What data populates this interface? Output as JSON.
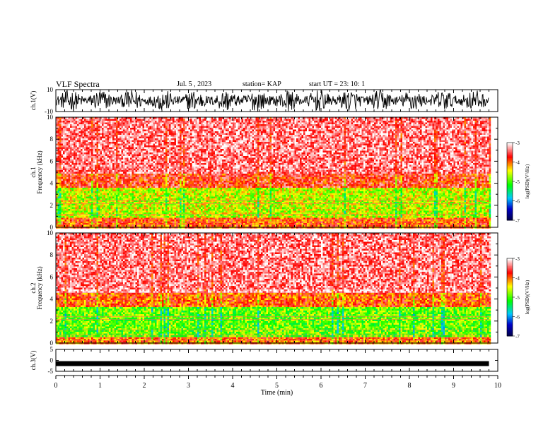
{
  "header": {
    "title": "VLF Spectra",
    "date": "Jul. 5 , 2023",
    "station": "station= KAP",
    "start": "start UT = 23: 10: 1"
  },
  "chart_data": [
    {
      "type": "line",
      "name": "ch1-waveform",
      "ylabel": "ch.1(V)",
      "ylim": [
        -10,
        10
      ],
      "yticks": [
        "10",
        "-10"
      ],
      "xlim": [
        0,
        10
      ],
      "description_visible": "dense black waveform spanning most of the range"
    },
    {
      "type": "heatmap",
      "name": "ch1-spectrogram",
      "ylabel_top": "ch.1",
      "ylabel": "Frequency (kHz)",
      "ylim": [
        0,
        10
      ],
      "yticks": [
        "0",
        "2",
        "4",
        "6",
        "8",
        "10"
      ],
      "xlim": [
        0,
        10
      ],
      "data_end_min": 9.8,
      "bands": [
        {
          "from": 0,
          "to": 1.0,
          "level": -3.9
        },
        {
          "from": 1.0,
          "to": 3.6,
          "level": -4.6
        },
        {
          "from": 3.6,
          "to": 5.0,
          "level": -3.7
        },
        {
          "from": 5.0,
          "to": 10,
          "level": -3.2
        }
      ],
      "colorbar": {
        "label": "log(PSD)(V²/Hz)",
        "range": [
          -7,
          -3
        ],
        "ticks": [
          "-3",
          "-4",
          "-5",
          "-6",
          "-7"
        ],
        "colors": [
          "#ffffff",
          "#ff0000",
          "#ffff00",
          "#00ff00",
          "#00c8ff",
          "#0000c8",
          "#000050"
        ]
      }
    },
    {
      "type": "heatmap",
      "name": "ch2-spectrogram",
      "ylabel_top": "ch.2",
      "ylabel": "Frequency (kHz)",
      "ylim": [
        0,
        10
      ],
      "yticks": [
        "0",
        "2",
        "4",
        "6",
        "8",
        "10"
      ],
      "xlim": [
        0,
        10
      ],
      "data_end_min": 9.8,
      "bands": [
        {
          "from": 0,
          "to": 0.7,
          "level": -4.0
        },
        {
          "from": 0.7,
          "to": 3.3,
          "level": -4.9
        },
        {
          "from": 3.3,
          "to": 4.6,
          "level": -3.9
        },
        {
          "from": 4.6,
          "to": 10,
          "level": -3.2
        }
      ],
      "colorbar": {
        "label": "log(PSD)(V²/Hz)",
        "range": [
          -7,
          -3
        ],
        "ticks": [
          "-3",
          "-4",
          "-5",
          "-6",
          "-7"
        ],
        "colors": [
          "#ffffff",
          "#ff0000",
          "#ffff00",
          "#00ff00",
          "#00c8ff",
          "#0000c8",
          "#000050"
        ]
      }
    },
    {
      "type": "line",
      "name": "ch3-waveform",
      "ylabel": "ch.3(V)",
      "ylim": [
        -5,
        5
      ],
      "yticks": [
        "5",
        "0",
        "-5"
      ],
      "xlim": [
        0,
        10
      ],
      "level_v": -1.5,
      "xlabel": "Time (min)",
      "xticks": [
        "0",
        "1",
        "2",
        "3",
        "4",
        "5",
        "6",
        "7",
        "8",
        "9",
        "10"
      ]
    }
  ]
}
